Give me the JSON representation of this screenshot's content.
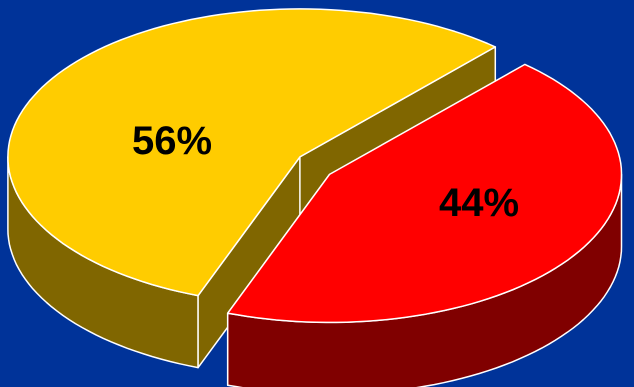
{
  "chart_data": {
    "type": "pie",
    "style": "3d-exploded",
    "categories": [
      "",
      ""
    ],
    "values": [
      56,
      44
    ],
    "data_labels": [
      "56%",
      "44%"
    ],
    "colors": {
      "top": [
        "#FFCC00",
        "#FF0000"
      ],
      "side": [
        "#806600",
        "#800000"
      ],
      "background": "#003399",
      "edge": "#FFFFFF"
    },
    "legend": "none",
    "title": ""
  }
}
